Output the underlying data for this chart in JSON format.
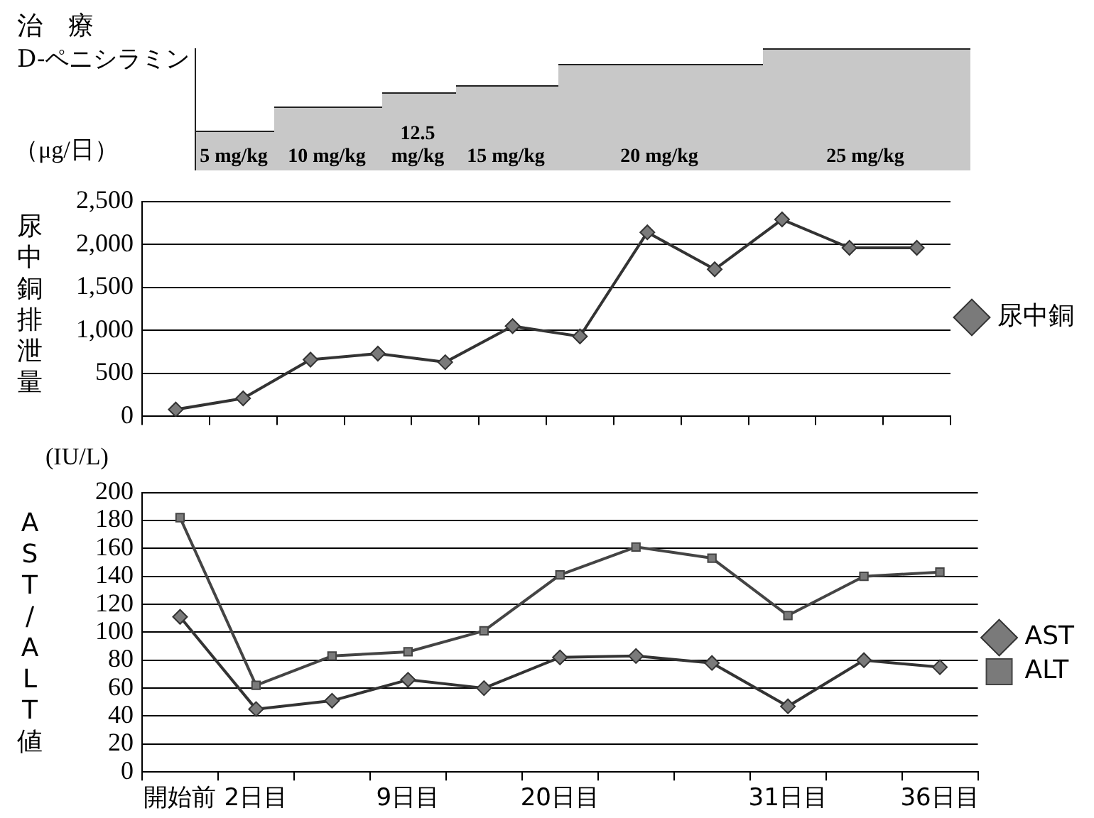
{
  "chart_data": [
    {
      "type": "line",
      "title": "治　療",
      "subtitle": "D-ペニシラミン",
      "ylabel": "尿中銅排泄量",
      "annotations": [
        "（μg/日）",
        "5 mg/kg",
        "10 mg/kg",
        "12.5 mg/kg",
        "15 mg/kg",
        "20 mg/kg",
        "25 mg/kg"
      ],
      "categories": [
        null,
        null,
        null,
        null,
        null,
        null,
        null,
        null,
        null,
        null,
        null,
        null
      ],
      "series": [
        {
          "name": "尿中銅",
          "color": "#333333",
          "marker": "diamond",
          "values": [
            80,
            210,
            660,
            730,
            630,
            1050,
            930,
            2140,
            1710,
            2290,
            1960,
            1960
          ]
        }
      ],
      "ylim": [
        0,
        2500
      ],
      "yticks": [
        {
          "value": 0,
          "label": "0"
        },
        {
          "value": 500,
          "label": "500"
        },
        {
          "value": 1000,
          "label": "1,000"
        },
        {
          "value": 1500,
          "label": "1,500"
        },
        {
          "value": 2000,
          "label": "2,000"
        },
        {
          "value": 2500,
          "label": "2,500"
        }
      ],
      "grid": "y",
      "legend": "right",
      "tick_labels": "y"
    },
    {
      "type": "line",
      "ylabel": "AST/ALT値",
      "annotations": [
        "(IU/L)"
      ],
      "categories": [
        "開始前",
        "2日目",
        null,
        "9日目",
        null,
        "20日目",
        null,
        null,
        "31日目",
        null,
        "36日目"
      ],
      "series": [
        {
          "name": "AST",
          "color": "#333333",
          "marker": "diamond",
          "values": [
            111,
            45,
            51,
            66,
            60,
            82,
            83,
            78,
            47,
            80,
            75
          ]
        },
        {
          "name": "ALT",
          "color": "#444444",
          "marker": "square",
          "values": [
            182,
            62,
            83,
            86,
            101,
            141,
            161,
            153,
            112,
            140,
            143
          ]
        }
      ],
      "ylim": [
        0,
        200
      ],
      "yticks": [
        0,
        20,
        40,
        60,
        80,
        100,
        120,
        140,
        160,
        180,
        200
      ],
      "grid": "y",
      "legend": "right"
    }
  ]
}
